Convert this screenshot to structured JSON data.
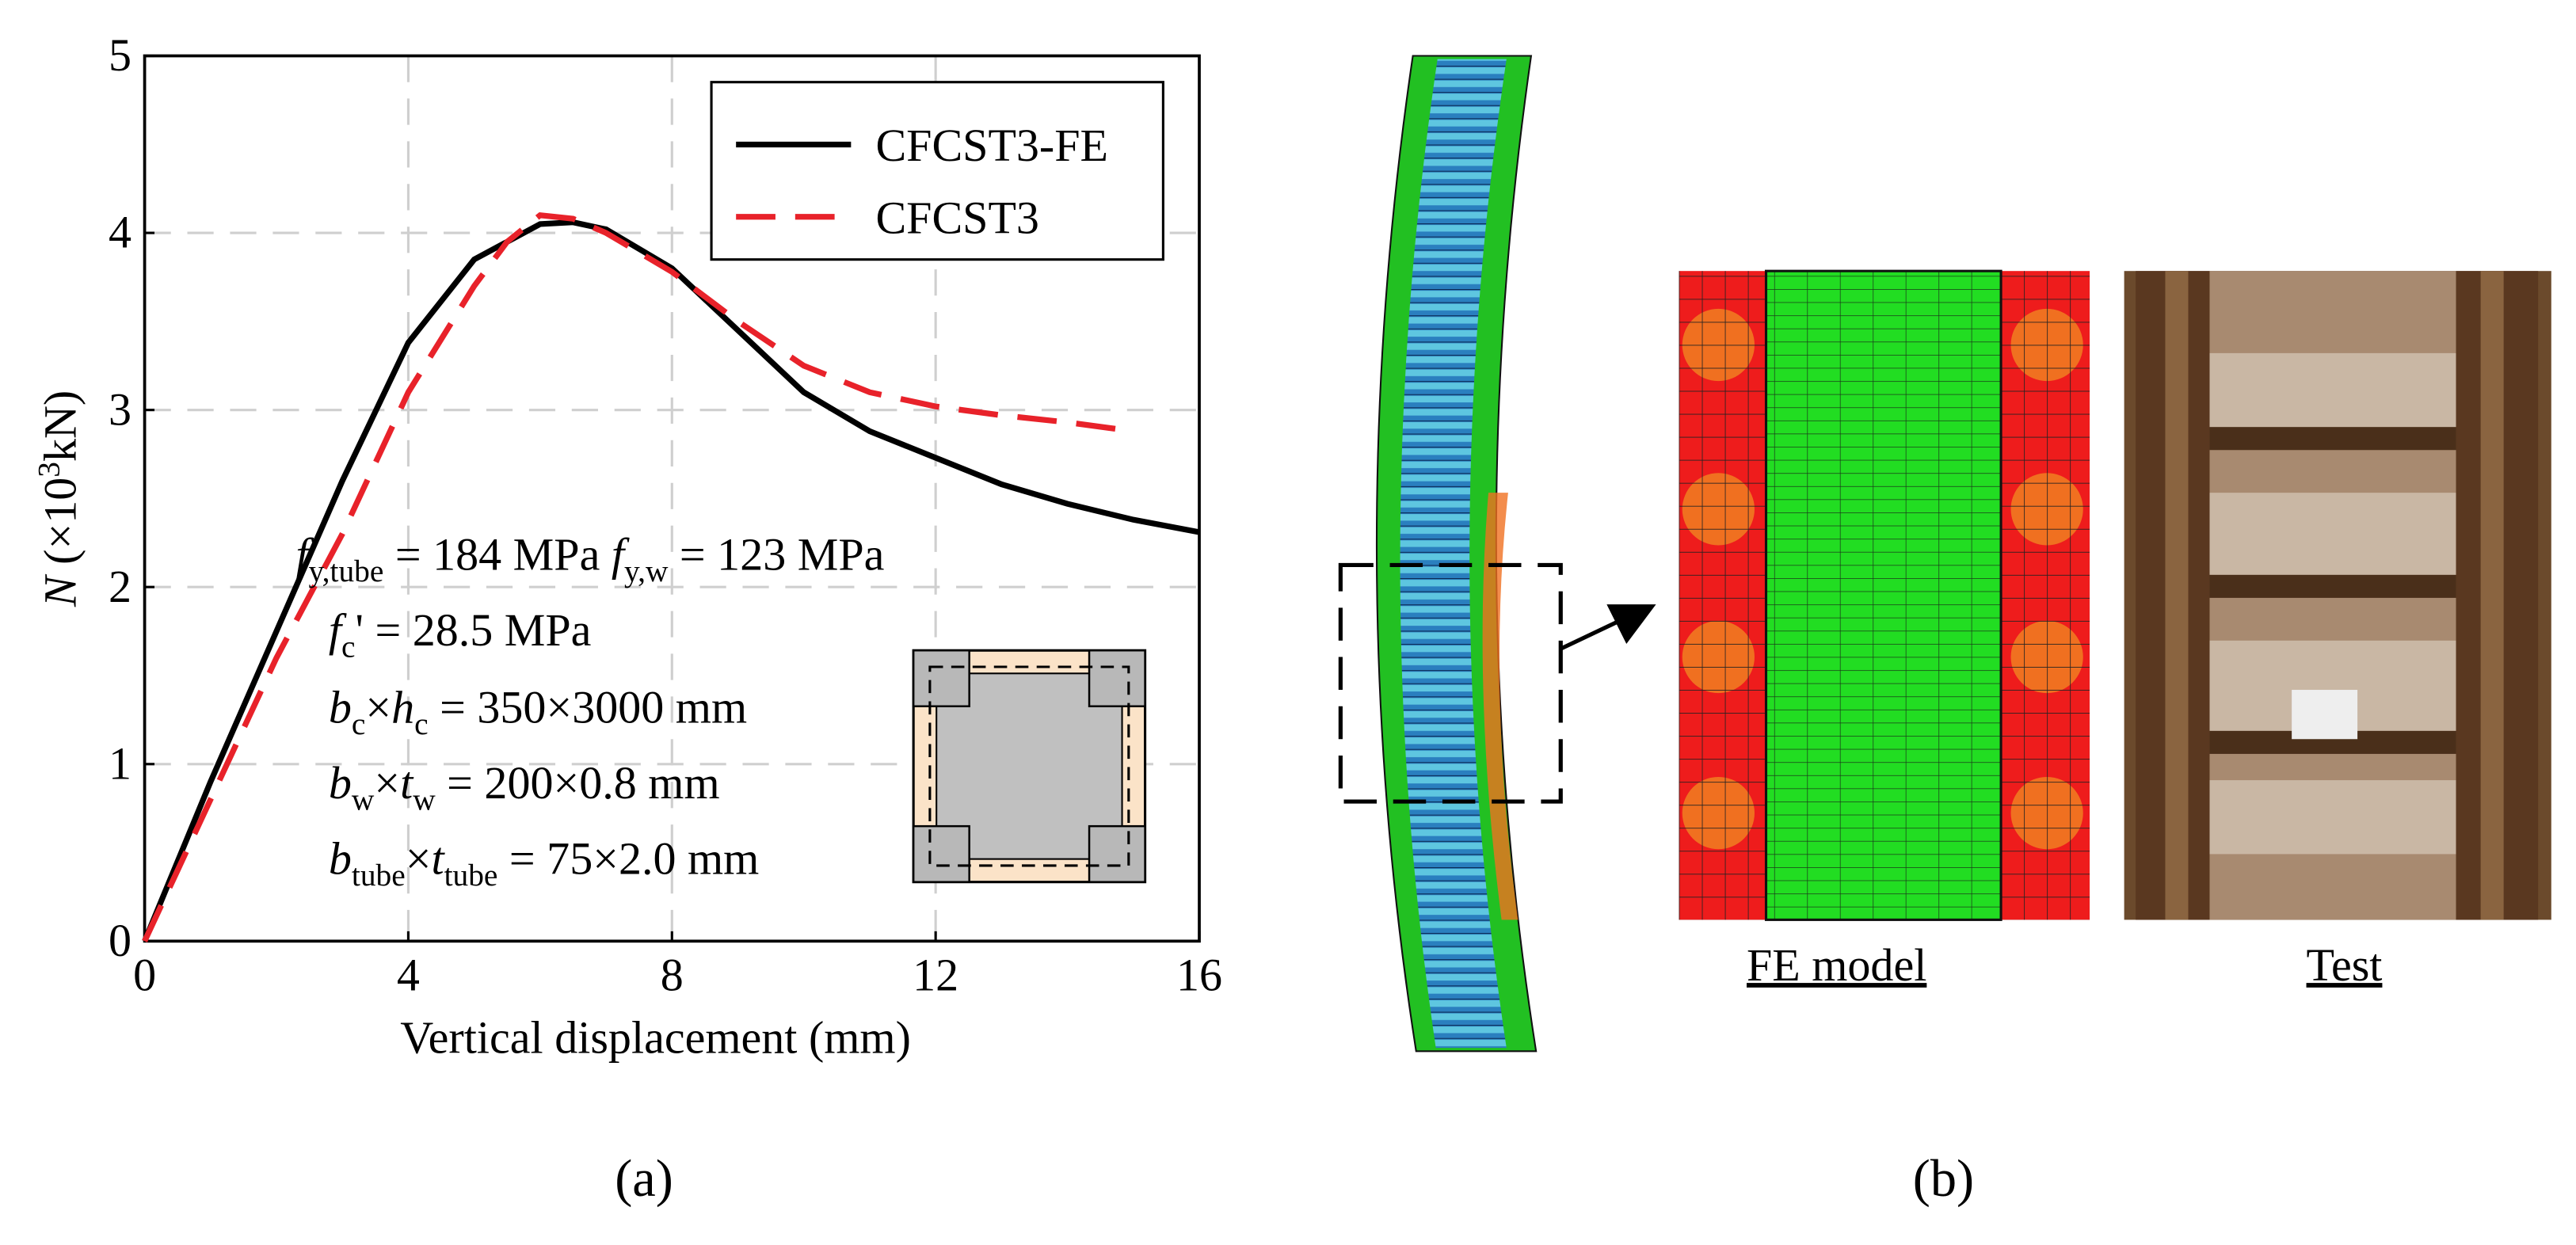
{
  "chart_data": {
    "type": "line",
    "xlabel": "Vertical displacement (mm)",
    "ylabel": [
      "N",
      " (×10",
      "3",
      "kN)"
    ],
    "xlim": [
      0,
      16
    ],
    "ylim": [
      0,
      5
    ],
    "xticks": [
      0,
      4,
      8,
      12,
      16
    ],
    "yticks": [
      0,
      1,
      2,
      3,
      4,
      5
    ],
    "grid": true,
    "legend": "upper right",
    "series": [
      {
        "name": "CFCST3-FE",
        "color": "#000000",
        "linestyle": "solid",
        "x": [
          0,
          0.5,
          1,
          2,
          3,
          4,
          5,
          6,
          6.5,
          7,
          8,
          9,
          10,
          11,
          12,
          13,
          14,
          15,
          16
        ],
        "values": [
          0,
          0.45,
          0.9,
          1.75,
          2.6,
          3.38,
          3.85,
          4.05,
          4.06,
          4.02,
          3.8,
          3.45,
          3.1,
          2.88,
          2.73,
          2.58,
          2.47,
          2.38,
          2.31
        ]
      },
      {
        "name": "CFCST3",
        "color": "#e8222a",
        "linestyle": "dashed",
        "x": [
          0,
          0.5,
          1,
          2,
          3,
          4,
          5,
          5.5,
          6,
          6.5,
          7,
          8,
          9,
          10,
          11,
          12,
          13,
          14,
          15
        ],
        "values": [
          0,
          0.4,
          0.8,
          1.6,
          2.3,
          3.1,
          3.7,
          3.95,
          4.1,
          4.08,
          4.0,
          3.78,
          3.5,
          3.25,
          3.1,
          3.02,
          2.97,
          2.93,
          2.88
        ]
      }
    ],
    "annotations": [
      [
        "f",
        "y,tube",
        " = 184 MPa ",
        "f",
        "y,w",
        " = 123 MPa"
      ],
      [
        "f",
        "c",
        "' = 28.5 MPa"
      ],
      [
        "b",
        "c",
        "×",
        "h",
        "c",
        " = 350×3000 mm"
      ],
      [
        "b",
        "w",
        "×",
        "t",
        "w",
        " = 200×0.8 mm"
      ],
      [
        "b",
        "tube",
        "×",
        "t",
        "tube",
        " = 75×2.0 mm"
      ]
    ]
  },
  "panel_labels": [
    "(a)",
    "(b)"
  ],
  "captions": [
    "FE model",
    "Test"
  ]
}
